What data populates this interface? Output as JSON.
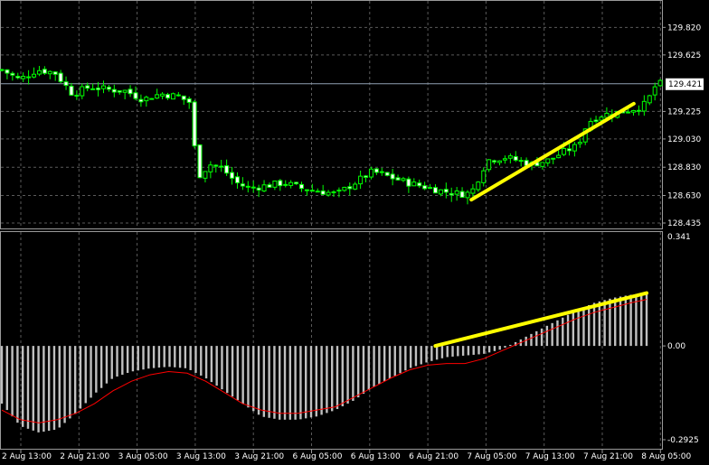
{
  "chart_data": [
    {
      "type": "candlestick",
      "price_axis": {
        "ylim": [
          128.435,
          129.95
        ],
        "ticks": [
          129.82,
          129.625,
          129.421,
          129.225,
          129.03,
          128.83,
          128.63,
          128.435
        ],
        "tick_labels": [
          "129.820",
          "129.625",
          "129.421",
          "129.225",
          "129.030",
          "128.830",
          "128.630",
          "128.435"
        ],
        "current_price": 129.421,
        "current_price_label": "129.421"
      },
      "candle_count": 124,
      "close_path": [
        [
          0,
          129.52
        ],
        [
          10,
          129.45
        ],
        [
          20,
          129.52
        ],
        [
          30,
          129.5
        ],
        [
          40,
          129.35
        ],
        [
          50,
          129.4
        ],
        [
          60,
          129.38
        ],
        [
          70,
          129.37
        ],
        [
          80,
          129.31
        ],
        [
          90,
          129.35
        ],
        [
          100,
          129.33
        ],
        [
          108,
          129.28
        ],
        [
          110,
          128.75
        ],
        [
          118,
          128.85
        ],
        [
          125,
          128.82
        ],
        [
          133,
          128.72
        ],
        [
          140,
          128.68
        ],
        [
          150,
          128.7
        ],
        [
          160,
          128.72
        ],
        [
          170,
          128.68
        ],
        [
          180,
          128.66
        ],
        [
          190,
          128.64
        ],
        [
          200,
          128.72
        ],
        [
          210,
          128.8
        ],
        [
          220,
          128.76
        ],
        [
          230,
          128.72
        ],
        [
          240,
          128.69
        ],
        [
          250,
          128.66
        ],
        [
          260,
          128.64
        ],
        [
          266,
          128.65
        ],
        [
          275,
          128.88
        ],
        [
          285,
          128.9
        ],
        [
          295,
          128.87
        ],
        [
          300,
          128.85
        ],
        [
          310,
          128.88
        ],
        [
          320,
          128.95
        ],
        [
          326,
          128.98
        ],
        [
          332,
          129.15
        ],
        [
          340,
          129.2
        ],
        [
          350,
          129.22
        ],
        [
          360,
          129.25
        ],
        [
          365,
          129.28
        ],
        [
          370,
          129.4
        ],
        [
          373,
          129.421
        ]
      ],
      "trendline": {
        "from": [
          266,
          128.6
        ],
        "to": [
          358,
          129.28
        ],
        "color": "#ffff00"
      },
      "colors": {
        "candle": "#00ff00",
        "grid": "#5a5a5a",
        "price_line": "#8fa0b4",
        "background": "#000000"
      }
    },
    {
      "type": "histogram",
      "axis": {
        "ylim": [
          -0.2925,
          0.341
        ],
        "ticks": [
          0.341,
          0.0,
          -0.2925
        ],
        "tick_labels": [
          "0.341",
          "0.00",
          "-0.2925"
        ]
      },
      "bar_count": 124,
      "macd_path": [
        [
          0,
          -0.18
        ],
        [
          5,
          -0.25
        ],
        [
          10,
          -0.27
        ],
        [
          15,
          -0.26
        ],
        [
          20,
          -0.21
        ],
        [
          25,
          -0.15
        ],
        [
          30,
          -0.1
        ],
        [
          35,
          -0.08
        ],
        [
          40,
          -0.07
        ],
        [
          45,
          -0.065
        ],
        [
          50,
          -0.07
        ],
        [
          55,
          -0.1
        ],
        [
          60,
          -0.14
        ],
        [
          65,
          -0.18
        ],
        [
          70,
          -0.22
        ],
        [
          75,
          -0.23
        ],
        [
          80,
          -0.23
        ],
        [
          85,
          -0.22
        ],
        [
          90,
          -0.2
        ],
        [
          95,
          -0.17
        ],
        [
          100,
          -0.13
        ],
        [
          105,
          -0.1
        ],
        [
          110,
          -0.07
        ],
        [
          115,
          -0.05
        ],
        [
          120,
          -0.035
        ],
        [
          125,
          -0.03
        ],
        [
          130,
          -0.025
        ],
        [
          135,
          -0.01
        ],
        [
          140,
          0.02
        ],
        [
          145,
          0.05
        ],
        [
          150,
          0.08
        ],
        [
          155,
          0.11
        ],
        [
          160,
          0.135
        ],
        [
          165,
          0.15
        ],
        [
          170,
          0.16
        ],
        [
          174,
          0.165
        ]
      ],
      "signal_path": [
        [
          0,
          -0.2
        ],
        [
          5,
          -0.23
        ],
        [
          10,
          -0.24
        ],
        [
          15,
          -0.23
        ],
        [
          20,
          -0.21
        ],
        [
          25,
          -0.18
        ],
        [
          30,
          -0.14
        ],
        [
          35,
          -0.11
        ],
        [
          40,
          -0.09
        ],
        [
          45,
          -0.08
        ],
        [
          50,
          -0.085
        ],
        [
          55,
          -0.11
        ],
        [
          60,
          -0.145
        ],
        [
          65,
          -0.18
        ],
        [
          70,
          -0.2
        ],
        [
          75,
          -0.21
        ],
        [
          80,
          -0.21
        ],
        [
          85,
          -0.2
        ],
        [
          90,
          -0.19
        ],
        [
          95,
          -0.16
        ],
        [
          100,
          -0.13
        ],
        [
          105,
          -0.1
        ],
        [
          110,
          -0.075
        ],
        [
          115,
          -0.06
        ],
        [
          120,
          -0.055
        ],
        [
          125,
          -0.055
        ],
        [
          130,
          -0.04
        ],
        [
          135,
          -0.015
        ],
        [
          140,
          0.01
        ],
        [
          145,
          0.035
        ],
        [
          150,
          0.06
        ],
        [
          155,
          0.085
        ],
        [
          160,
          0.105
        ],
        [
          165,
          0.12
        ],
        [
          170,
          0.135
        ],
        [
          174,
          0.145
        ]
      ],
      "trendline": {
        "from": [
          117,
          0.0
        ],
        "to": [
          174,
          0.165
        ],
        "color": "#ffff00"
      },
      "colors": {
        "bars": "#c0c0c0",
        "signal": "#ff0000"
      }
    }
  ],
  "time_axis": {
    "labels": [
      "2 Aug 13:00",
      "2 Aug 21:00",
      "3 Aug 05:00",
      "3 Aug 13:00",
      "3 Aug 21:00",
      "6 Aug 05:00",
      "6 Aug 13:00",
      "6 Aug 21:00",
      "7 Aug 05:00",
      "7 Aug 13:00",
      "7 Aug 21:00",
      "8 Aug 05:00"
    ]
  }
}
